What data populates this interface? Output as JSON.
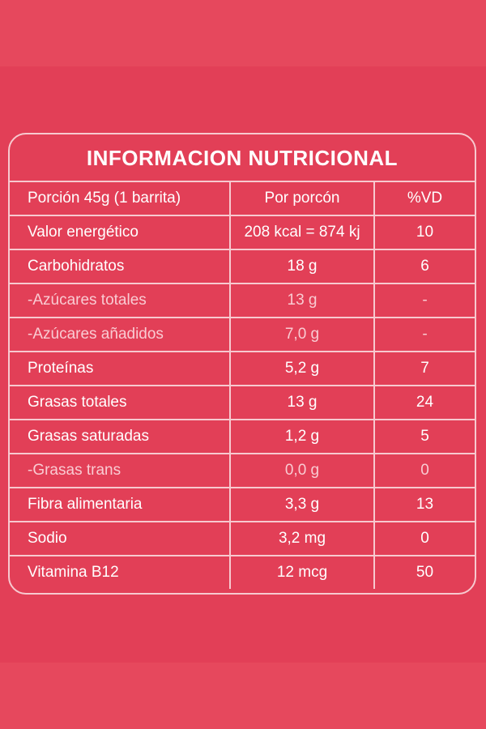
{
  "title": "INFORMACION NUTRICIONAL",
  "header": {
    "col1": "Porción 45g (1 barrita)",
    "col2": "Por porcón",
    "col3": "%VD"
  },
  "rows": [
    {
      "name": "Valor energético",
      "amount": "208 kcal = 874 kj",
      "vd": "10"
    },
    {
      "name": "Carbohidratos",
      "amount": "18 g",
      "vd": "6"
    },
    {
      "name": "-Azúcares totales",
      "amount": "13 g",
      "vd": "-"
    },
    {
      "name": "-Azúcares añadidos",
      "amount": "7,0 g",
      "vd": "-"
    },
    {
      "name": "Proteínas",
      "amount": "5,2 g",
      "vd": "7"
    },
    {
      "name": "Grasas totales",
      "amount": "13 g",
      "vd": "24"
    },
    {
      "name": "Grasas saturadas",
      "amount": "1,2 g",
      "vd": "5"
    },
    {
      "name": "-Grasas trans",
      "amount": "0,0 g",
      "vd": "0"
    },
    {
      "name": "Fibra alimentaria",
      "amount": "3,3 g",
      "vd": "13"
    },
    {
      "name": "Sodio",
      "amount": "3,2 mg",
      "vd": "0"
    },
    {
      "name": "Vitamina B12",
      "amount": "12 mcg",
      "vd": "50"
    }
  ]
}
